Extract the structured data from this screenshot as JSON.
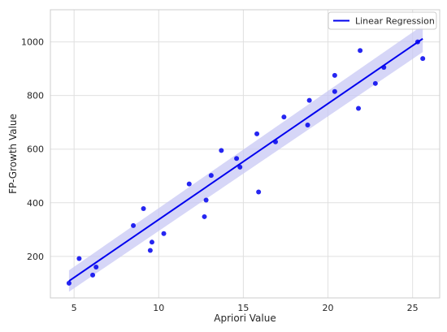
{
  "chart_data": {
    "type": "scatter",
    "xlabel": "Apriori Value",
    "ylabel": "FP-Growth Value",
    "xlim": [
      3.6,
      26.6
    ],
    "ylim": [
      45,
      1120
    ],
    "xticks": [
      5,
      10,
      15,
      20,
      25
    ],
    "yticks": [
      200,
      400,
      600,
      800,
      1000
    ],
    "grid": true,
    "legend": {
      "placement": "top-right",
      "entries": [
        "Linear Regression"
      ]
    },
    "colors": {
      "points": "#0000ee",
      "line": "#0000ee",
      "band": "#c8c8f4",
      "grid": "#e0e0e0",
      "frame": "#cccccc"
    },
    "series": [
      {
        "kind": "scatter",
        "x": [
          4.7,
          5.3,
          6.1,
          6.3,
          8.5,
          9.1,
          9.5,
          9.6,
          10.3,
          11.8,
          12.7,
          12.8,
          13.1,
          13.7,
          14.6,
          14.8,
          15.8,
          15.9,
          16.9,
          17.4,
          18.8,
          18.9,
          20.4,
          20.4,
          21.8,
          21.9,
          22.8,
          23.3,
          25.3,
          25.6
        ],
        "y": [
          100,
          192,
          130,
          160,
          315,
          378,
          222,
          253,
          285,
          470,
          348,
          410,
          502,
          595,
          565,
          533,
          657,
          440,
          627,
          720,
          690,
          782,
          815,
          875,
          752,
          968,
          845,
          905,
          1000,
          938
        ]
      },
      {
        "kind": "line",
        "name": "Linear Regression",
        "x": [
          4.7,
          25.6
        ],
        "y": [
          108,
          1012
        ],
        "ci_upper": [
          148,
          1062
        ],
        "ci_lower": [
          68,
          962
        ]
      }
    ]
  }
}
